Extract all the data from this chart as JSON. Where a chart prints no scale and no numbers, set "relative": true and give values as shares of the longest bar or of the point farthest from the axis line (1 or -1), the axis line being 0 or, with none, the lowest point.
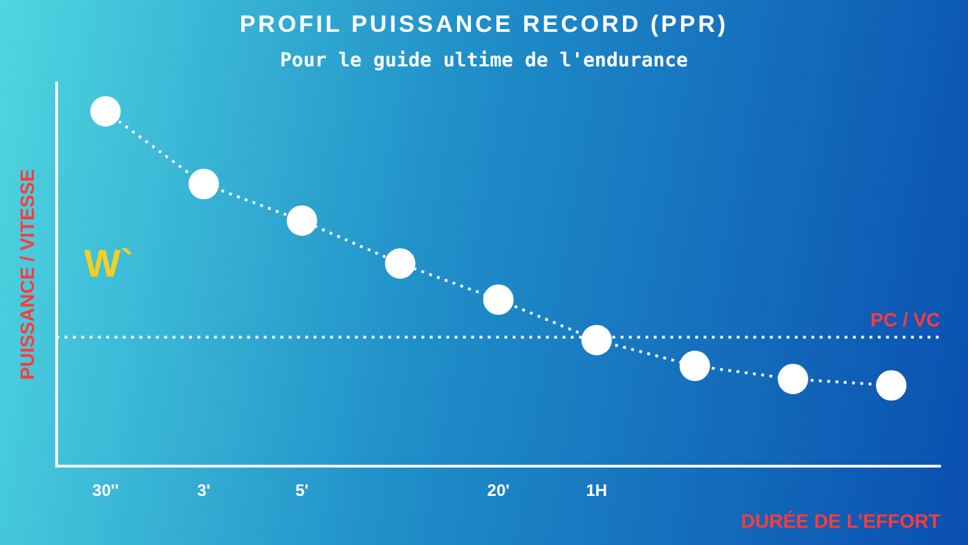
{
  "chart_data": {
    "type": "line",
    "title": "PROFIL PUISSANCE RECORD (PPR)",
    "subtitle": "Pour le guide ultime de l'endurance",
    "xlabel": "DURÉE DE L'EFFORT",
    "ylabel": "PUISSANCE / VITESSE",
    "categories": [
      "30''",
      "3'",
      "5'",
      null,
      "20'",
      "1H",
      null,
      null,
      null
    ],
    "relative": true,
    "series": [
      {
        "color": "#ffffff",
        "values": [
          1,
          0.795,
          0.692,
          0.571,
          0.469,
          0.355,
          0.282,
          0.245,
          0.227
        ]
      }
    ],
    "marker": "circle",
    "line_style": "dotted",
    "grid": false,
    "legend": false,
    "ref_lines": [
      {
        "axis": "y",
        "value": 0.363,
        "label": "PC / VC",
        "color": "#ffffff",
        "line_style": "dotted"
      }
    ],
    "annotations": [
      "W`"
    ]
  }
}
